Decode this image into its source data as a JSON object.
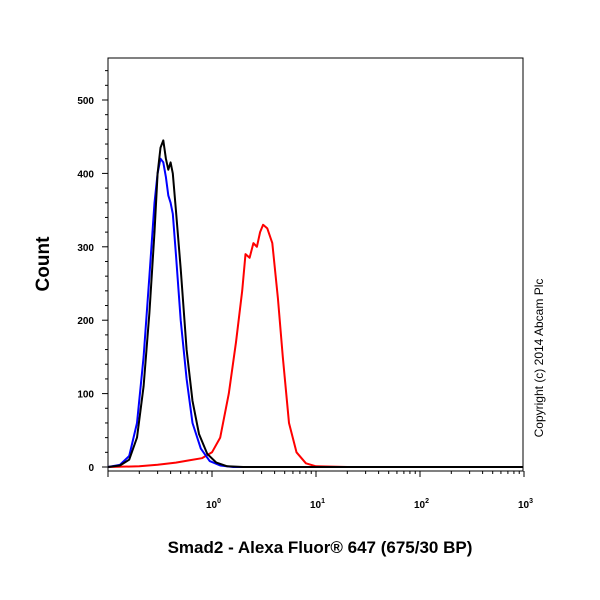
{
  "chart_data": {
    "type": "line",
    "xlabel": "Smad2 - Alexa Fluor® 647 (675/30 BP)",
    "ylabel": "Count",
    "copyright": "Copyright (c) 2014 Abcam Plc",
    "x_scale": "log",
    "xlim": [
      0.1,
      1000
    ],
    "ylim": [
      0,
      500
    ],
    "x_ticks": [
      {
        "base": "10",
        "exp": "0",
        "value": 1
      },
      {
        "base": "10",
        "exp": "1",
        "value": 10
      },
      {
        "base": "10",
        "exp": "2",
        "value": 100
      },
      {
        "base": "10",
        "exp": "3",
        "value": 1000
      }
    ],
    "y_ticks": [
      "0",
      "100",
      "200",
      "300",
      "400",
      "500"
    ],
    "grid": false,
    "series": [
      {
        "color": "#ff0000",
        "points": [
          [
            0.1,
            0
          ],
          [
            0.2,
            1
          ],
          [
            0.3,
            3
          ],
          [
            0.45,
            6
          ],
          [
            0.6,
            9
          ],
          [
            0.8,
            12
          ],
          [
            1.0,
            20
          ],
          [
            1.2,
            40
          ],
          [
            1.45,
            100
          ],
          [
            1.7,
            170
          ],
          [
            1.95,
            240
          ],
          [
            2.1,
            290
          ],
          [
            2.3,
            285
          ],
          [
            2.5,
            305
          ],
          [
            2.7,
            300
          ],
          [
            2.9,
            320
          ],
          [
            3.1,
            330
          ],
          [
            3.4,
            325
          ],
          [
            3.8,
            305
          ],
          [
            4.3,
            230
          ],
          [
            4.8,
            150
          ],
          [
            5.5,
            60
          ],
          [
            6.5,
            20
          ],
          [
            8,
            5
          ],
          [
            10,
            1
          ],
          [
            20,
            0
          ],
          [
            1000,
            0
          ]
        ]
      },
      {
        "color": "#0000ff",
        "points": [
          [
            0.1,
            0
          ],
          [
            0.13,
            3
          ],
          [
            0.16,
            15
          ],
          [
            0.19,
            60
          ],
          [
            0.22,
            150
          ],
          [
            0.25,
            260
          ],
          [
            0.28,
            360
          ],
          [
            0.3,
            400
          ],
          [
            0.32,
            420
          ],
          [
            0.34,
            415
          ],
          [
            0.36,
            395
          ],
          [
            0.38,
            370
          ],
          [
            0.4,
            360
          ],
          [
            0.42,
            345
          ],
          [
            0.45,
            290
          ],
          [
            0.5,
            200
          ],
          [
            0.57,
            120
          ],
          [
            0.65,
            60
          ],
          [
            0.78,
            25
          ],
          [
            0.95,
            8
          ],
          [
            1.2,
            2
          ],
          [
            1.6,
            0
          ],
          [
            1000,
            0
          ]
        ]
      },
      {
        "color": "#000000",
        "points": [
          [
            0.1,
            0
          ],
          [
            0.13,
            2
          ],
          [
            0.16,
            10
          ],
          [
            0.19,
            40
          ],
          [
            0.22,
            110
          ],
          [
            0.25,
            210
          ],
          [
            0.28,
            320
          ],
          [
            0.3,
            400
          ],
          [
            0.32,
            435
          ],
          [
            0.34,
            445
          ],
          [
            0.36,
            420
          ],
          [
            0.38,
            405
          ],
          [
            0.4,
            415
          ],
          [
            0.42,
            400
          ],
          [
            0.45,
            350
          ],
          [
            0.5,
            270
          ],
          [
            0.57,
            160
          ],
          [
            0.65,
            90
          ],
          [
            0.75,
            45
          ],
          [
            0.9,
            18
          ],
          [
            1.1,
            6
          ],
          [
            1.4,
            1
          ],
          [
            2,
            0
          ],
          [
            1000,
            0
          ]
        ]
      }
    ]
  }
}
